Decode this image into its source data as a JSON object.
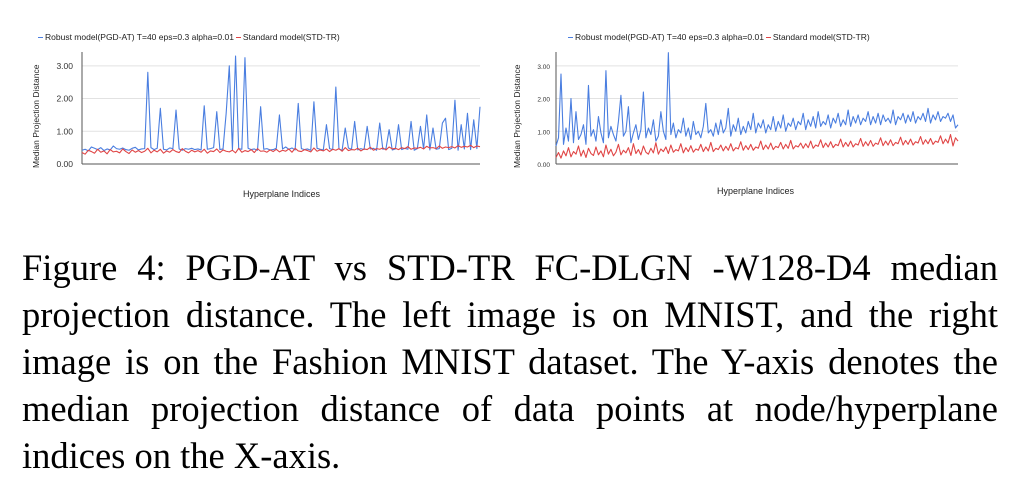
{
  "chart_data": [
    {
      "type": "line",
      "legend": [
        "Robust model(PGD-AT) T=40 eps=0.3 alpha=0.01",
        "Standard model(STD-TR)"
      ],
      "legend_position": "top",
      "xlabel": "Hyperplane Indices",
      "ylabel": "Median Projection Distance",
      "ylim": [
        0,
        3.3
      ],
      "yticks": [
        "0.00",
        "1.00",
        "2.00",
        "3.00"
      ],
      "grid": true,
      "x_count": 128,
      "series": [
        {
          "name": "Robust model(PGD-AT) T=40 eps=0.3 alpha=0.01",
          "color": "#4a7ee0",
          "values": [
            0.42,
            0.45,
            0.4,
            0.52,
            0.48,
            0.44,
            0.5,
            0.41,
            0.46,
            0.43,
            0.55,
            0.47,
            0.45,
            0.49,
            0.44,
            0.42,
            0.48,
            0.51,
            0.43,
            0.46,
            0.47,
            2.8,
            0.5,
            0.44,
            0.48,
            1.7,
            0.45,
            0.43,
            0.49,
            0.47,
            1.65,
            0.46,
            0.42,
            0.47,
            0.45,
            0.48,
            0.44,
            0.46,
            0.43,
            1.78,
            0.45,
            0.47,
            0.5,
            1.6,
            0.44,
            0.46,
            1.55,
            3.0,
            0.43,
            3.3,
            0.47,
            0.45,
            3.25,
            0.48,
            0.44,
            0.46,
            0.42,
            1.75,
            0.45,
            0.47,
            0.43,
            0.44,
            0.48,
            1.5,
            0.46,
            0.52,
            0.45,
            0.49,
            0.43,
            1.85,
            0.47,
            0.44,
            0.46,
            0.42,
            1.9,
            0.48,
            0.45,
            0.43,
            1.2,
            0.47,
            0.44,
            2.35,
            0.46,
            0.42,
            1.1,
            0.49,
            0.45,
            1.3,
            0.43,
            0.47,
            0.44,
            1.15,
            0.46,
            0.48,
            0.42,
            1.25,
            0.45,
            0.47,
            1.05,
            0.43,
            0.46,
            1.2,
            0.44,
            0.48,
            0.45,
            1.3,
            0.42,
            0.47,
            1.15,
            0.46,
            1.5,
            0.43,
            1.1,
            0.45,
            0.47,
            1.25,
            1.4,
            0.44,
            0.48,
            1.95,
            0.42,
            1.2,
            0.46,
            1.55,
            0.44,
            1.35,
            0.47,
            1.75
          ]
        },
        {
          "name": "Standard model(STD-TR)",
          "color": "#e04545",
          "values": [
            0.35,
            0.3,
            0.42,
            0.38,
            0.33,
            0.45,
            0.36,
            0.4,
            0.31,
            0.44,
            0.37,
            0.39,
            0.34,
            0.46,
            0.38,
            0.32,
            0.43,
            0.36,
            0.41,
            0.35,
            0.39,
            0.48,
            0.34,
            0.42,
            0.37,
            0.45,
            0.33,
            0.4,
            0.36,
            0.44,
            0.38,
            0.35,
            0.47,
            0.39,
            0.34,
            0.42,
            0.37,
            0.41,
            0.36,
            0.45,
            0.33,
            0.4,
            0.38,
            0.46,
            0.35,
            0.43,
            0.39,
            0.37,
            0.42,
            0.34,
            0.48,
            0.36,
            0.41,
            0.38,
            0.44,
            0.35,
            0.47,
            0.39,
            0.4,
            0.36,
            0.43,
            0.38,
            0.45,
            0.37,
            0.42,
            0.39,
            0.46,
            0.36,
            0.48,
            0.4,
            0.38,
            0.44,
            0.41,
            0.37,
            0.49,
            0.39,
            0.43,
            0.4,
            0.46,
            0.38,
            0.45,
            0.42,
            0.47,
            0.39,
            0.5,
            0.41,
            0.44,
            0.43,
            0.48,
            0.4,
            0.46,
            0.44,
            0.51,
            0.42,
            0.47,
            0.45,
            0.49,
            0.43,
            0.52,
            0.46,
            0.48,
            0.44,
            0.5,
            0.47,
            0.53,
            0.45,
            0.49,
            0.48,
            0.51,
            0.46,
            0.54,
            0.49,
            0.5,
            0.47,
            0.55,
            0.48,
            0.52,
            0.5,
            0.53,
            0.49,
            0.56,
            0.51,
            0.54,
            0.52,
            0.57,
            0.5,
            0.55,
            0.53
          ]
        }
      ]
    },
    {
      "type": "line",
      "legend": [
        "Robust model(PGD-AT) T=40 eps=0.3 alpha=0.01",
        "Standard model(STD-TR)"
      ],
      "legend_position": "top",
      "xlabel": "Hyperplane Indices",
      "ylabel": "Median Projection Distance",
      "ylim": [
        0,
        3.3
      ],
      "yticks": [
        "0.00",
        "1.00",
        "2.00",
        "3.00"
      ],
      "grid": true,
      "x_count": 160,
      "series": [
        {
          "name": "Robust model(PGD-AT) T=40 eps=0.3 alpha=0.01",
          "color": "#4a7ee0",
          "values": [
            0.55,
            0.8,
            2.75,
            0.6,
            1.1,
            0.7,
            2.0,
            0.65,
            1.6,
            0.75,
            0.9,
            1.2,
            0.6,
            2.4,
            0.85,
            1.05,
            0.7,
            1.45,
            0.95,
            0.65,
            2.85,
            0.8,
            1.15,
            0.9,
            0.7,
            1.3,
            2.1,
            0.85,
            1.0,
            1.75,
            0.65,
            0.95,
            1.2,
            0.75,
            1.05,
            2.2,
            0.8,
            1.1,
            0.9,
            1.35,
            0.7,
            0.85,
            1.6,
            1.0,
            0.75,
            3.4,
            0.9,
            1.25,
            0.8,
            1.05,
            0.95,
            1.4,
            0.85,
            1.1,
            0.75,
            1.3,
            0.9,
            1.0,
            0.8,
            1.15,
            1.85,
            0.95,
            1.05,
            0.85,
            1.25,
            0.9,
            1.35,
            0.95,
            1.1,
            1.7,
            0.85,
            1.2,
            1.0,
            1.4,
            0.9,
            1.15,
            0.95,
            1.3,
            1.05,
            1.55,
            0.95,
            1.25,
            1.1,
            1.35,
            0.95,
            1.2,
            1.05,
            1.45,
            1.0,
            1.3,
            1.1,
            1.5,
            1.0,
            1.25,
            1.15,
            1.4,
            1.05,
            1.3,
            1.2,
            1.55,
            1.05,
            1.35,
            1.15,
            1.45,
            1.1,
            1.6,
            1.15,
            1.3,
            1.2,
            1.5,
            1.1,
            1.4,
            1.25,
            1.55,
            1.15,
            1.35,
            1.2,
            1.65,
            1.15,
            1.45,
            1.25,
            1.5,
            1.2,
            1.4,
            1.3,
            1.6,
            1.2,
            1.45,
            1.25,
            1.55,
            1.2,
            1.5,
            1.3,
            1.4,
            1.25,
            1.65,
            1.2,
            1.45,
            1.35,
            1.55,
            1.25,
            1.5,
            1.3,
            1.6,
            1.25,
            1.45,
            1.35,
            1.55,
            1.3,
            1.7,
            1.25,
            1.5,
            1.35,
            1.6,
            1.3,
            1.45,
            1.4,
            1.55,
            1.3,
            1.5,
            1.1,
            1.2
          ]
        },
        {
          "name": "Standard model(STD-TR)",
          "color": "#e04545",
          "values": [
            0.2,
            0.35,
            0.18,
            0.4,
            0.25,
            0.5,
            0.22,
            0.38,
            0.3,
            0.55,
            0.24,
            0.42,
            0.2,
            0.48,
            0.32,
            0.26,
            0.52,
            0.28,
            0.4,
            0.22,
            0.58,
            0.3,
            0.45,
            0.25,
            0.36,
            0.6,
            0.28,
            0.42,
            0.34,
            0.5,
            0.26,
            0.62,
            0.32,
            0.44,
            0.28,
            0.55,
            0.36,
            0.3,
            0.48,
            0.34,
            0.65,
            0.3,
            0.46,
            0.38,
            0.52,
            0.32,
            0.58,
            0.36,
            0.44,
            0.4,
            0.62,
            0.34,
            0.5,
            0.38,
            0.56,
            0.36,
            0.46,
            0.42,
            0.6,
            0.38,
            0.52,
            0.4,
            0.66,
            0.38,
            0.48,
            0.44,
            0.58,
            0.4,
            0.54,
            0.42,
            0.62,
            0.4,
            0.5,
            0.46,
            0.68,
            0.42,
            0.56,
            0.44,
            0.6,
            0.42,
            0.52,
            0.48,
            0.7,
            0.44,
            0.58,
            0.46,
            0.64,
            0.44,
            0.54,
            0.5,
            0.66,
            0.46,
            0.6,
            0.48,
            0.72,
            0.46,
            0.56,
            0.52,
            0.64,
            0.48,
            0.62,
            0.5,
            0.7,
            0.48,
            0.58,
            0.54,
            0.74,
            0.5,
            0.64,
            0.52,
            0.68,
            0.5,
            0.6,
            0.56,
            0.76,
            0.52,
            0.66,
            0.54,
            0.7,
            0.52,
            0.62,
            0.58,
            0.78,
            0.54,
            0.68,
            0.56,
            0.72,
            0.54,
            0.64,
            0.6,
            0.8,
            0.56,
            0.7,
            0.58,
            0.74,
            0.56,
            0.66,
            0.62,
            0.82,
            0.58,
            0.72,
            0.6,
            0.76,
            0.58,
            0.68,
            0.64,
            0.84,
            0.6,
            0.74,
            0.62,
            0.78,
            0.6,
            0.7,
            0.66,
            0.86,
            0.62,
            0.76,
            0.64,
            0.9,
            0.55,
            0.8,
            0.7
          ]
        }
      ]
    }
  ],
  "caption": "Figure 4: PGD-AT vs STD-TR FC-DLGN -W128-D4 median projection distance. The left image is on MNIST, and the right image is on the Fashion MNIST dataset. The Y-axis denotes the median projection distance of data points at node/hyperplane indices on the X-axis."
}
